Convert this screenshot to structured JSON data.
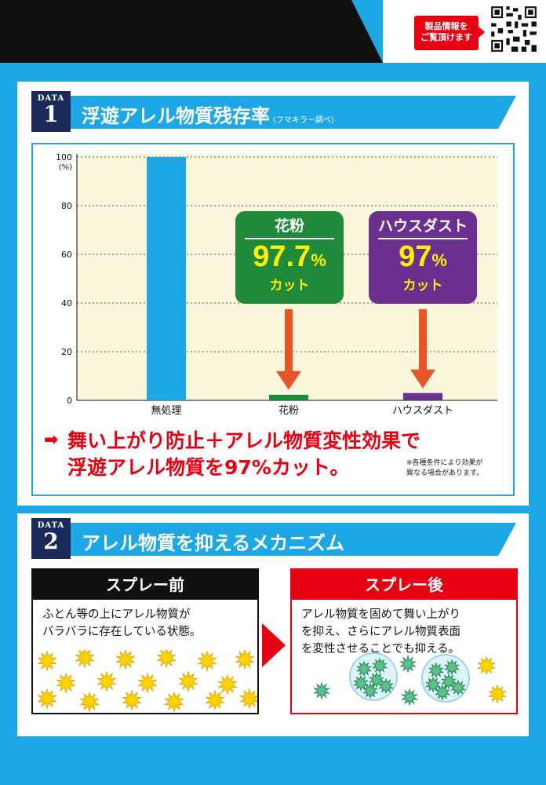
{
  "header": {
    "badge_line1": "製品情報を",
    "badge_line2": "ご覧頂けます"
  },
  "section1": {
    "tag": "DATA",
    "number": "1",
    "title": "浮遊アレル物質残存率",
    "subtitle": "(フマキラー調べ)"
  },
  "chart_data": {
    "type": "bar",
    "categories": [
      "無処理",
      "花粉",
      "ハウスダスト"
    ],
    "values": [
      100,
      2.3,
      3
    ],
    "colors": [
      "#1da7e4",
      "#1e8a3a",
      "#6b2f8f"
    ],
    "ylabel": "(%)",
    "ylim": [
      0,
      100
    ],
    "yticks": [
      0,
      20,
      40,
      60,
      80,
      100
    ],
    "grid": true,
    "plot_background": "#fbf6dc"
  },
  "callouts": {
    "pollen": {
      "label": "花粉",
      "value": "97.7",
      "unit": "%",
      "cut": "カット"
    },
    "dust": {
      "label": "ハウスダスト",
      "value": "97",
      "unit": "%",
      "cut": "カット"
    }
  },
  "message": {
    "arrow": "➡",
    "line1": "舞い上がり防止＋アレル物質変性効果で",
    "line2": "浮遊アレル物質を97%カット。",
    "note1": "※各種条件により効果が",
    "note2": "異なる場合があります。"
  },
  "section2": {
    "tag": "DATA",
    "number": "2",
    "title": "アレル物質を抑えるメカニズム",
    "before": {
      "title": "スプレー前",
      "text1": "ふとん等の上にアレル物質が",
      "text2": "バラバラに存在している状態。"
    },
    "after": {
      "title": "スプレー後",
      "text1": "アレル物質を固めて舞い上がり",
      "text2": "を抑え、さらにアレル物質表面",
      "text3": "を変性させることでも抑える。"
    }
  }
}
